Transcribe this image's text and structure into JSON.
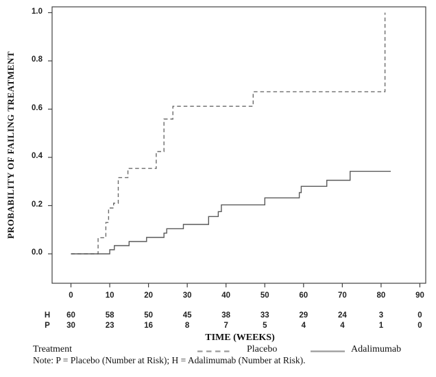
{
  "figure": {
    "y_axis_title": "PROBABILITY OF FAILING TREATMENT",
    "x_axis_title": "TIME (WEEKS)",
    "legend": {
      "group_label": "Treatment",
      "entries": [
        {
          "label": "Placebo",
          "style": "dashed"
        },
        {
          "label": "Adalimumab",
          "style": "solid"
        }
      ]
    },
    "note": "Note: P = Placebo (Number at Risk); H = Adalimumab (Number at Risk).",
    "colors": {
      "axis": "#3f3f3f",
      "text": "#1f1f1f",
      "placebo_line": "#6a6a6a",
      "adalimumab_line": "#585858",
      "legend_sample": "#9a9a9a"
    }
  },
  "chart_data": {
    "type": "line",
    "subtype": "kaplan-meier-step",
    "title": "",
    "xlabel": "TIME (WEEKS)",
    "ylabel": "PROBABILITY OF FAILING TREATMENT",
    "xlim": [
      -5,
      92
    ],
    "ylim": [
      -0.12,
      1.02
    ],
    "x_ticks": [
      0,
      10,
      20,
      30,
      40,
      50,
      60,
      70,
      80,
      90
    ],
    "y_ticks": [
      "0.0",
      "0.2",
      "0.4",
      "0.6",
      "0.8",
      "1.0"
    ],
    "grid": false,
    "legend_position": "bottom",
    "series": [
      {
        "name": "Placebo",
        "line": "dashed",
        "points": [
          [
            0,
            0.0
          ],
          [
            7,
            0.067
          ],
          [
            9,
            0.13
          ],
          [
            9.7,
            0.19
          ],
          [
            11,
            0.21
          ],
          [
            12.2,
            0.316
          ],
          [
            14.7,
            0.354
          ],
          [
            22,
            0.424
          ],
          [
            24,
            0.559
          ],
          [
            26.3,
            0.612
          ],
          [
            47,
            0.672
          ],
          [
            81,
            1.0
          ]
        ],
        "end_week": 81
      },
      {
        "name": "Adalimumab",
        "line": "solid",
        "points": [
          [
            0,
            0.0
          ],
          [
            10,
            0.017
          ],
          [
            11.2,
            0.034
          ],
          [
            15,
            0.051
          ],
          [
            19.5,
            0.068
          ],
          [
            24,
            0.086
          ],
          [
            24.7,
            0.104
          ],
          [
            29,
            0.122
          ],
          [
            35.5,
            0.155
          ],
          [
            38,
            0.175
          ],
          [
            38.8,
            0.203
          ],
          [
            50,
            0.232
          ],
          [
            58.9,
            0.254
          ],
          [
            59.4,
            0.28
          ],
          [
            66,
            0.305
          ],
          [
            72,
            0.342
          ]
        ],
        "end_week": 82.5
      }
    ],
    "number_at_risk": {
      "weeks": [
        0,
        10,
        20,
        30,
        40,
        50,
        60,
        70,
        80,
        90
      ],
      "rows": [
        {
          "label": "H",
          "treatment": "Adalimumab",
          "values": [
            60,
            58,
            50,
            45,
            38,
            33,
            29,
            24,
            3,
            0
          ]
        },
        {
          "label": "P",
          "treatment": "Placebo",
          "values": [
            30,
            23,
            16,
            8,
            7,
            5,
            4,
            4,
            1,
            0
          ]
        }
      ]
    }
  }
}
